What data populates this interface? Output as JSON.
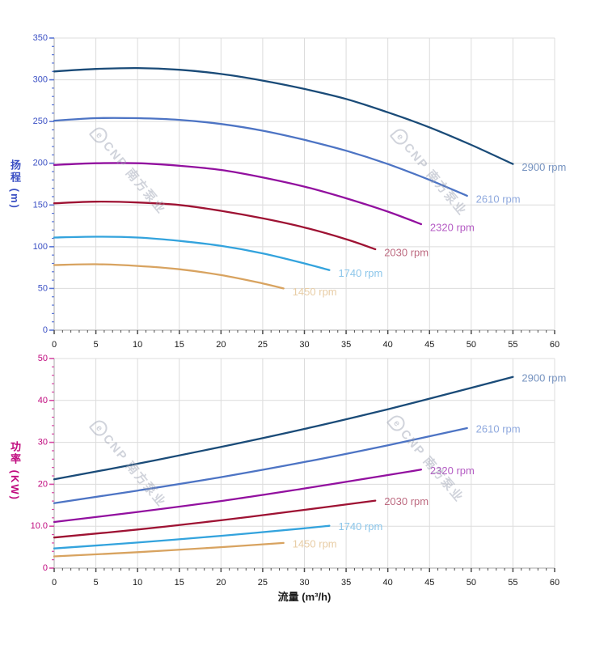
{
  "watermark": {
    "logo_char": "e",
    "text": "CNP 南方泵业"
  },
  "chart_data": [
    {
      "id": "head-curves",
      "type": "line",
      "y_axis": {
        "title": "扬程 (m)",
        "color": "#3b50c4",
        "tick_color": "#5b76d6",
        "min": 0,
        "max": 350,
        "major_step": 50,
        "minor_step": 10,
        "grid_step": 50,
        "ticks": [
          {
            "v": 0,
            "label": "0"
          },
          {
            "v": 50,
            "label": "50"
          },
          {
            "v": 100,
            "label": "100"
          },
          {
            "v": 150,
            "label": "150"
          },
          {
            "v": 200,
            "label": "200"
          },
          {
            "v": 250,
            "label": "250"
          },
          {
            "v": 300,
            "label": "300"
          },
          {
            "v": 350,
            "label": "350"
          }
        ]
      },
      "x_axis": {
        "min": 0,
        "max": 60,
        "major_step": 5,
        "minor_step": 1,
        "grid_step": 5,
        "ticks": [
          {
            "v": 0,
            "label": "0"
          },
          {
            "v": 5,
            "label": "5"
          },
          {
            "v": 10,
            "label": "10"
          },
          {
            "v": 15,
            "label": "15"
          },
          {
            "v": 20,
            "label": "20"
          },
          {
            "v": 25,
            "label": "25"
          },
          {
            "v": 30,
            "label": "30"
          },
          {
            "v": 35,
            "label": "35"
          },
          {
            "v": 40,
            "label": "40"
          },
          {
            "v": 45,
            "label": "45"
          },
          {
            "v": 50,
            "label": "50"
          },
          {
            "v": 55,
            "label": "55"
          },
          {
            "v": 60,
            "label": "60"
          }
        ]
      },
      "series": [
        {
          "name": "2900 rpm",
          "color": "#1a4b78",
          "label_color": "#7693c0",
          "points": [
            [
              0,
              310
            ],
            [
              5,
              313
            ],
            [
              10,
              314
            ],
            [
              15,
              312
            ],
            [
              20,
              307
            ],
            [
              25,
              299
            ],
            [
              30,
              289
            ],
            [
              35,
              277
            ],
            [
              40,
              261
            ],
            [
              45,
              243
            ],
            [
              50,
              222
            ],
            [
              55,
              199
            ]
          ]
        },
        {
          "name": "2610 rpm",
          "color": "#4d74c4",
          "label_color": "#8fa9de",
          "points": [
            [
              0,
              251
            ],
            [
              5,
              254
            ],
            [
              10,
              254
            ],
            [
              15,
              252
            ],
            [
              20,
              247
            ],
            [
              25,
              239
            ],
            [
              30,
              228
            ],
            [
              35,
              215
            ],
            [
              40,
              199
            ],
            [
              45,
              180
            ],
            [
              49.5,
              161
            ]
          ]
        },
        {
          "name": "2320 rpm",
          "color": "#92109f",
          "label_color": "#b55cc4",
          "points": [
            [
              0,
              198
            ],
            [
              5,
              200
            ],
            [
              10,
              200
            ],
            [
              15,
              197
            ],
            [
              20,
              192
            ],
            [
              25,
              183
            ],
            [
              30,
              172
            ],
            [
              35,
              158
            ],
            [
              40,
              142
            ],
            [
              44,
              127
            ]
          ]
        },
        {
          "name": "2030 rpm",
          "color": "#9e1233",
          "label_color": "#bd6a80",
          "points": [
            [
              0,
              152
            ],
            [
              5,
              154
            ],
            [
              10,
              153
            ],
            [
              15,
              150
            ],
            [
              20,
              143
            ],
            [
              25,
              134
            ],
            [
              30,
              123
            ],
            [
              35,
              109
            ],
            [
              38.5,
              97
            ]
          ]
        },
        {
          "name": "1740 rpm",
          "color": "#33a3dd",
          "label_color": "#8cc6ea",
          "points": [
            [
              0,
              111
            ],
            [
              5,
              112
            ],
            [
              10,
              111
            ],
            [
              15,
              107
            ],
            [
              20,
              101
            ],
            [
              25,
              92
            ],
            [
              30,
              80
            ],
            [
              33,
              72
            ]
          ]
        },
        {
          "name": "1450 rpm",
          "color": "#d8a360",
          "label_color": "#e8cda6",
          "points": [
            [
              0,
              78
            ],
            [
              5,
              79
            ],
            [
              10,
              77
            ],
            [
              15,
              73
            ],
            [
              20,
              66
            ],
            [
              25,
              56
            ],
            [
              27.5,
              50
            ]
          ]
        }
      ]
    },
    {
      "id": "power-curves",
      "type": "line",
      "y_axis": {
        "title": "功率 (KW)",
        "color": "#c00a7e",
        "tick_color": "#d649a4",
        "min": 0,
        "max": 50,
        "major_step": 10,
        "minor_step": 2,
        "grid_step": 10,
        "ticks": [
          {
            "v": 0,
            "label": "0"
          },
          {
            "v": 10,
            "label": "10.0"
          },
          {
            "v": 20,
            "label": "20"
          },
          {
            "v": 30,
            "label": "30"
          },
          {
            "v": 40,
            "label": "40"
          },
          {
            "v": 50,
            "label": "50"
          }
        ]
      },
      "x_axis": {
        "title": "流量 (m³/h)",
        "min": 0,
        "max": 60,
        "major_step": 5,
        "minor_step": 1,
        "grid_step": 5,
        "ticks": [
          {
            "v": 0,
            "label": "0"
          },
          {
            "v": 5,
            "label": "5"
          },
          {
            "v": 10,
            "label": "10"
          },
          {
            "v": 15,
            "label": "15"
          },
          {
            "v": 20,
            "label": "20"
          },
          {
            "v": 25,
            "label": "25"
          },
          {
            "v": 30,
            "label": "30"
          },
          {
            "v": 35,
            "label": "35"
          },
          {
            "v": 40,
            "label": "40"
          },
          {
            "v": 45,
            "label": "45"
          },
          {
            "v": 50,
            "label": "50"
          },
          {
            "v": 55,
            "label": "55"
          },
          {
            "v": 60,
            "label": "60"
          }
        ]
      },
      "series": [
        {
          "name": "2900 rpm",
          "color": "#1a4b78",
          "label_color": "#7693c0",
          "points": [
            [
              0,
              21.2
            ],
            [
              10,
              24.9
            ],
            [
              20,
              28.9
            ],
            [
              30,
              33.2
            ],
            [
              40,
              37.9
            ],
            [
              50,
              43
            ],
            [
              55,
              45.6
            ]
          ]
        },
        {
          "name": "2610 rpm",
          "color": "#4d74c4",
          "label_color": "#8fa9de",
          "points": [
            [
              0,
              15.5
            ],
            [
              10,
              18.5
            ],
            [
              20,
              21.7
            ],
            [
              30,
              25.3
            ],
            [
              40,
              29.3
            ],
            [
              49.5,
              33.4
            ]
          ]
        },
        {
          "name": "2320 rpm",
          "color": "#92109f",
          "label_color": "#b55cc4",
          "points": [
            [
              0,
              11
            ],
            [
              10,
              13.4
            ],
            [
              20,
              16
            ],
            [
              30,
              19
            ],
            [
              40,
              22.2
            ],
            [
              44,
              23.5
            ]
          ]
        },
        {
          "name": "2030 rpm",
          "color": "#9e1233",
          "label_color": "#bd6a80",
          "points": [
            [
              0,
              7.3
            ],
            [
              10,
              9.2
            ],
            [
              20,
              11.4
            ],
            [
              30,
              13.9
            ],
            [
              38.5,
              16.1
            ]
          ]
        },
        {
          "name": "1740 rpm",
          "color": "#33a3dd",
          "label_color": "#8cc6ea",
          "points": [
            [
              0,
              4.7
            ],
            [
              10,
              6.1
            ],
            [
              20,
              7.7
            ],
            [
              30,
              9.5
            ],
            [
              33,
              10.1
            ]
          ]
        },
        {
          "name": "1450 rpm",
          "color": "#d8a360",
          "label_color": "#e8cda6",
          "points": [
            [
              0,
              2.8
            ],
            [
              10,
              3.8
            ],
            [
              20,
              5
            ],
            [
              27.5,
              6
            ]
          ]
        }
      ]
    }
  ]
}
